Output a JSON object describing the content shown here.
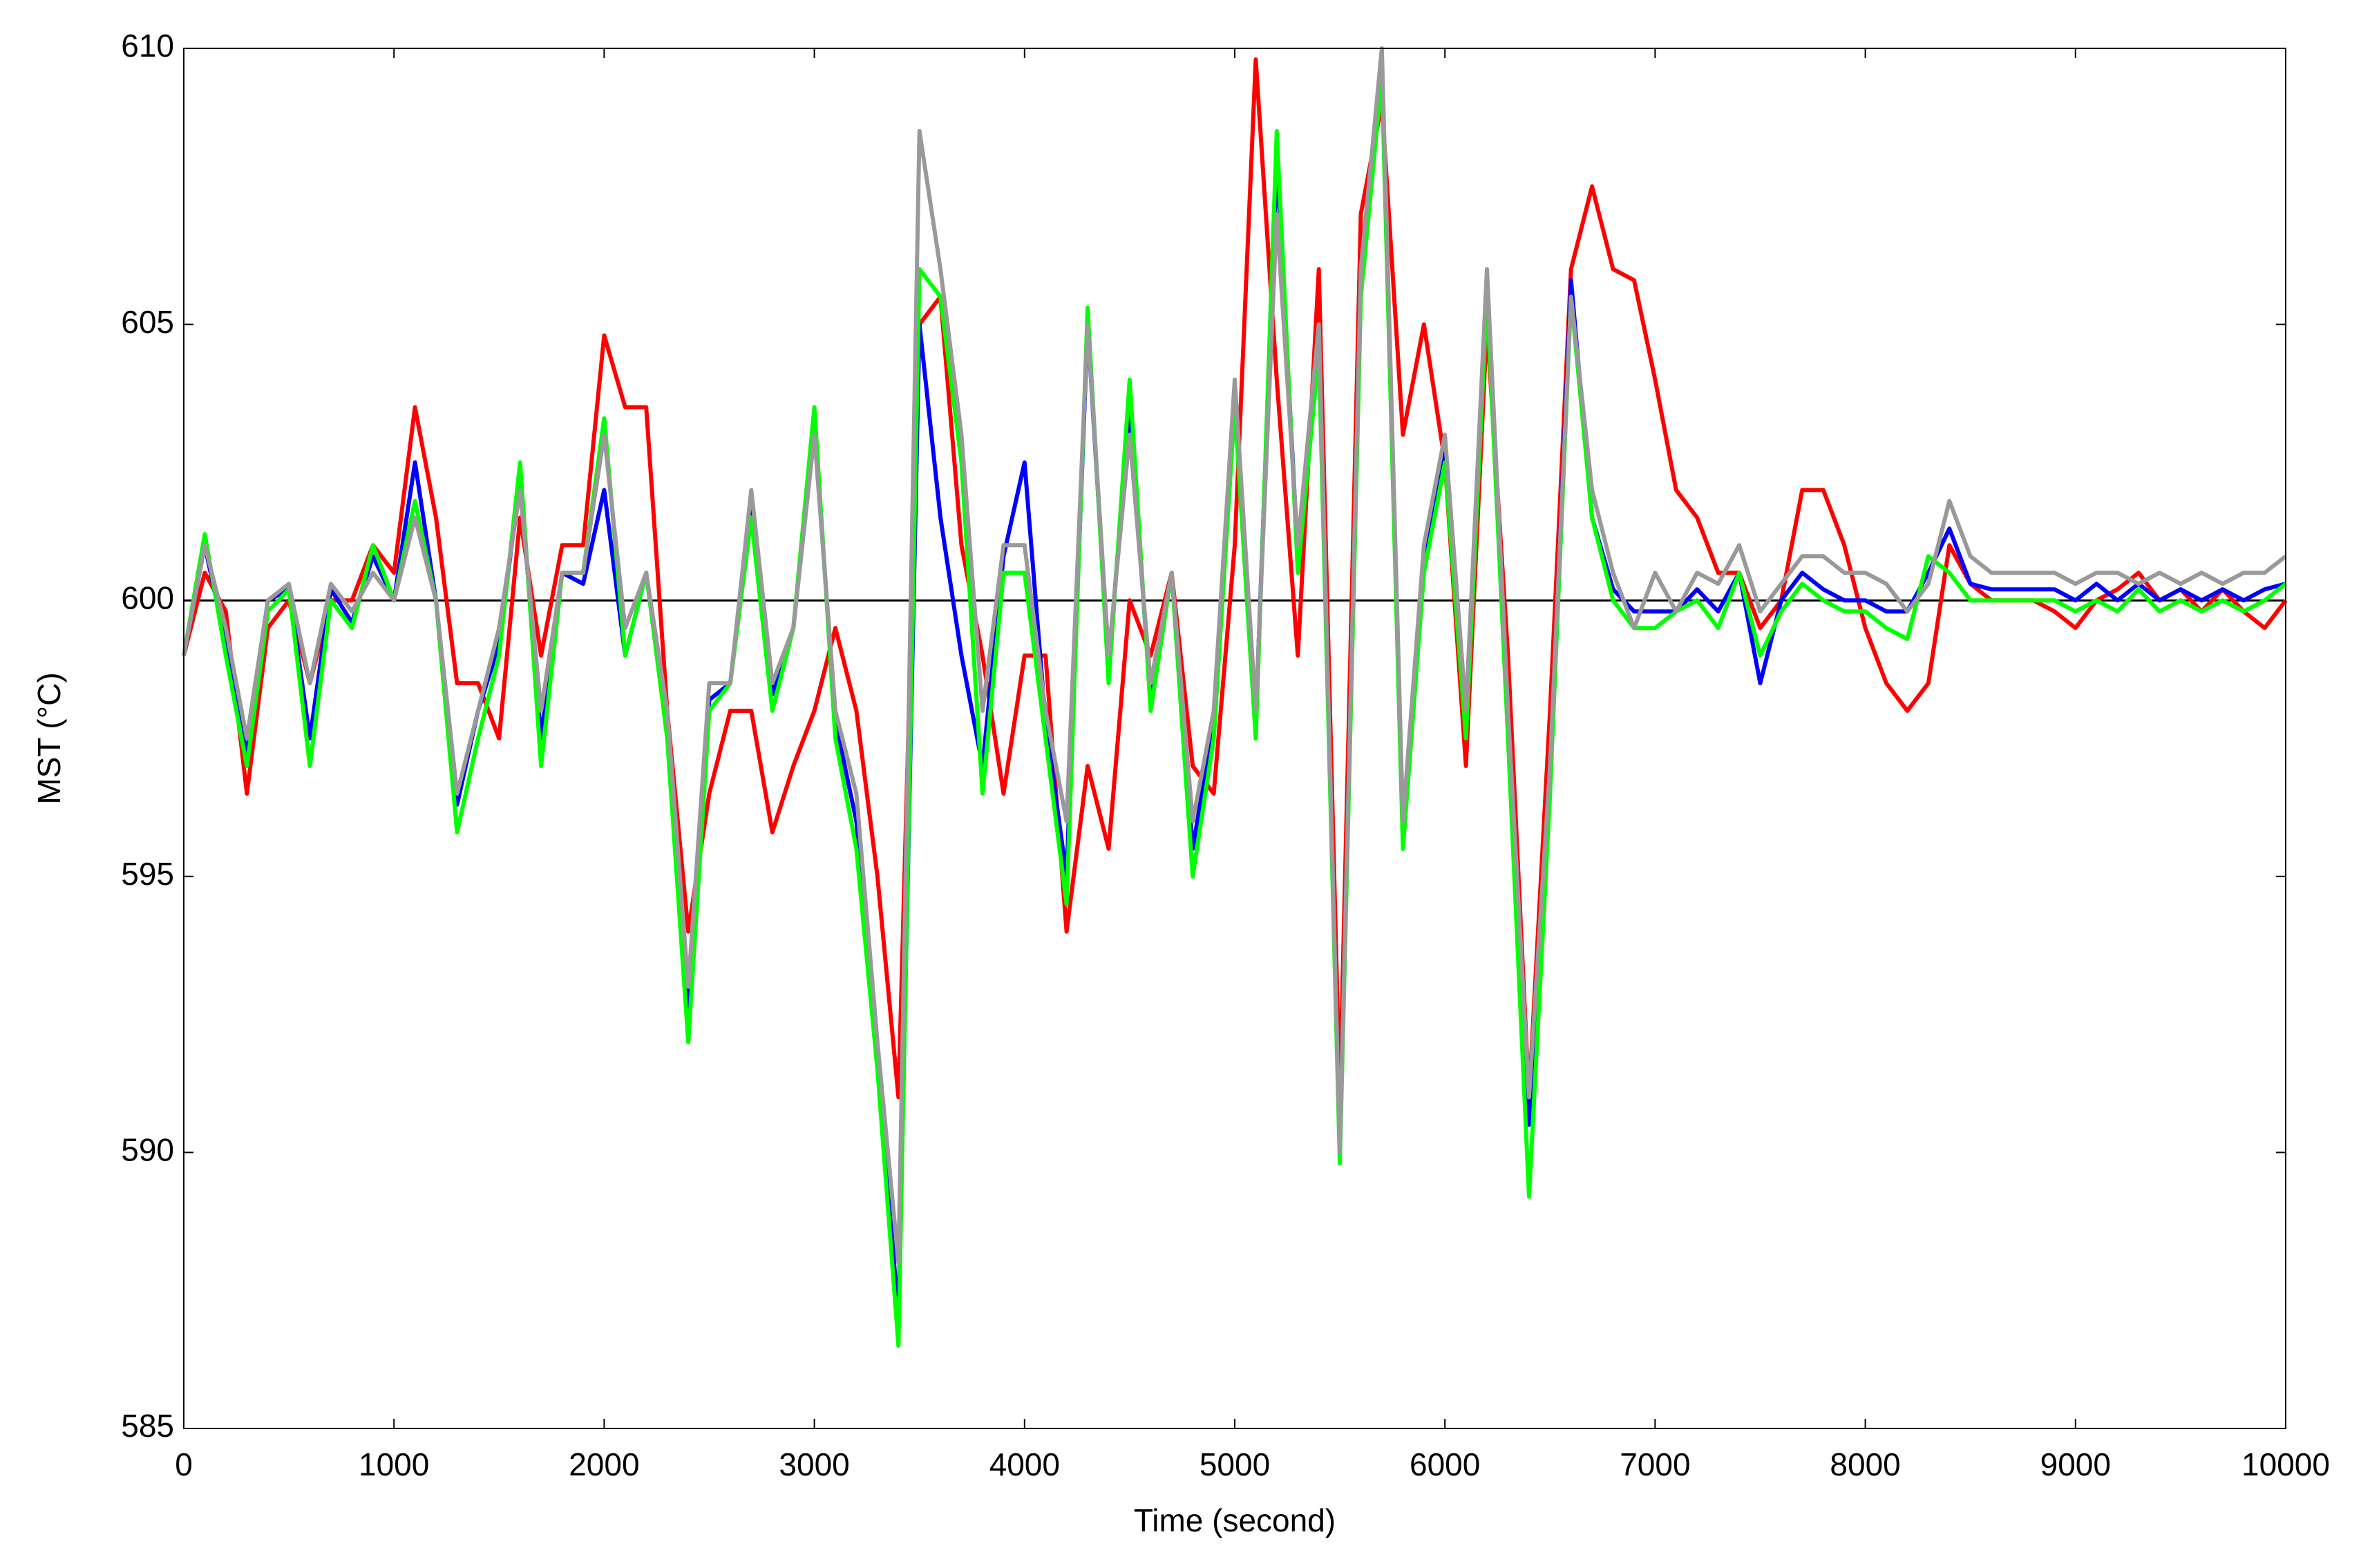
{
  "chart_data": {
    "type": "line",
    "xlabel": "Time (second)",
    "ylabel": "MST (°C)",
    "x": [
      0,
      100,
      200,
      300,
      400,
      500,
      600,
      700,
      800,
      900,
      1000,
      1100,
      1200,
      1300,
      1400,
      1500,
      1600,
      1700,
      1800,
      1900,
      2000,
      2100,
      2200,
      2300,
      2400,
      2500,
      2600,
      2700,
      2800,
      2900,
      3000,
      3100,
      3200,
      3300,
      3400,
      3500,
      3600,
      3700,
      3800,
      3900,
      4000,
      4100,
      4200,
      4300,
      4400,
      4500,
      4600,
      4700,
      4800,
      4900,
      5000,
      5100,
      5200,
      5300,
      5400,
      5500,
      5600,
      5700,
      5800,
      5900,
      6000,
      6100,
      6200,
      6300,
      6400,
      6500,
      6600,
      6700,
      6800,
      6900,
      7000,
      7100,
      7200,
      7300,
      7400,
      7500,
      7600,
      7700,
      7800,
      7900,
      8000,
      8100,
      8200,
      8300,
      8400,
      8500,
      8600,
      8700,
      8800,
      8900,
      9000,
      9100,
      9200,
      9300,
      9400,
      9500,
      9600,
      9700,
      9800,
      9900,
      10000
    ],
    "series": [
      {
        "color": "#ff0000",
        "values": [
          599,
          600.5,
          599.8,
          596.5,
          599.5,
          600,
          598.5,
          600,
          600,
          601,
          600.5,
          603.5,
          601.5,
          598.5,
          598.5,
          597.5,
          601.5,
          599,
          601,
          601,
          604.8,
          603.5,
          603.5,
          598,
          594,
          596.5,
          598,
          598,
          595.8,
          597,
          598,
          599.5,
          598,
          595,
          591,
          605,
          605.5,
          601,
          599,
          596.5,
          599,
          599,
          594,
          597,
          595.5,
          600,
          599,
          600.5,
          597,
          596.5,
          601,
          609.8,
          604,
          599,
          606,
          591,
          607,
          609,
          603,
          605,
          602.5,
          597,
          605,
          599,
          591,
          598,
          606,
          607.5,
          606,
          605.8,
          604,
          602,
          601.5,
          600.5,
          600.5,
          599.5,
          600,
          602,
          602,
          601,
          599.5,
          598.5,
          598,
          598.5,
          601,
          600.3,
          600,
          600,
          600,
          599.8,
          599.5,
          600,
          600.2,
          600.5,
          600,
          600.2,
          599.8,
          600.2,
          599.8,
          599.5,
          600
        ]
      },
      {
        "color": "#0000ff",
        "values": [
          599,
          601,
          599.2,
          597.2,
          600,
          600.2,
          597.5,
          600.2,
          599.6,
          600.8,
          600,
          602.5,
          600,
          596.3,
          598,
          599.2,
          602.2,
          597.5,
          600.5,
          600.3,
          602,
          599,
          600.5,
          597.8,
          592.5,
          598.2,
          598.5,
          601.8,
          598.3,
          599.5,
          603.2,
          597.8,
          596,
          591.8,
          587,
          605,
          601.5,
          599,
          597,
          600.8,
          602.5,
          597.8,
          595,
          605,
          598.8,
          603.5,
          598.2,
          600.5,
          595.5,
          597.8,
          603.8,
          597.8,
          608,
          600.8,
          604.8,
          590,
          605.8,
          609.8,
          595.8,
          600.8,
          602.8,
          597.8,
          605.8,
          597.8,
          590.5,
          596.8,
          605.8,
          601.5,
          600.2,
          599.8,
          599.8,
          599.8,
          600.2,
          599.8,
          600.5,
          598.5,
          600,
          600.5,
          600.2,
          600,
          600,
          599.8,
          599.8,
          600.5,
          601.3,
          600.3,
          600.2,
          600.2,
          600.2,
          600.2,
          600,
          600.3,
          600,
          600.3,
          600,
          600.2,
          600,
          600.2,
          600,
          600.2,
          600.3
        ]
      },
      {
        "color": "#00ff00",
        "values": [
          599,
          601.2,
          599,
          597,
          599.8,
          600.2,
          597,
          600,
          599.5,
          601,
          600,
          601.8,
          600,
          595.8,
          597.5,
          599,
          602.5,
          597,
          600.5,
          600.5,
          603.3,
          599,
          600.5,
          597.5,
          592,
          598,
          598.5,
          601.5,
          598,
          599.5,
          603.5,
          597.5,
          595.5,
          591.5,
          586.5,
          606,
          605.5,
          602.5,
          596.5,
          600.5,
          600.5,
          597.5,
          594.5,
          605.3,
          598.5,
          604,
          598,
          600.5,
          595,
          597.5,
          603.5,
          597.5,
          608.5,
          600.5,
          604.5,
          589.8,
          605.5,
          609.5,
          595.5,
          600.5,
          602.5,
          597.5,
          605.5,
          597.5,
          589.2,
          596.5,
          605.5,
          601.5,
          600,
          599.5,
          599.5,
          599.8,
          600,
          599.5,
          600.5,
          599,
          599.8,
          600.3,
          600,
          599.8,
          599.8,
          599.5,
          599.3,
          600.8,
          600.5,
          600,
          600,
          600,
          600,
          600,
          599.8,
          600,
          599.8,
          600.2,
          599.8,
          600,
          599.8,
          600,
          599.8,
          600,
          600.3
        ]
      },
      {
        "color": "#999999",
        "values": [
          599,
          601,
          599.5,
          597.5,
          600,
          600.3,
          598.5,
          600.3,
          599.8,
          600.5,
          600,
          601.5,
          600,
          596.5,
          598,
          599.5,
          602,
          598,
          600.5,
          600.5,
          603,
          599.5,
          600.5,
          598,
          593,
          598.5,
          598.5,
          602,
          598.5,
          599.5,
          603,
          598,
          596.5,
          592,
          588,
          608.5,
          606,
          603,
          598,
          601,
          601,
          598,
          596,
          605,
          599,
          603,
          598.5,
          600.5,
          596,
          598,
          604,
          598,
          607,
          601,
          605,
          590,
          606,
          610,
          596,
          601,
          603,
          598,
          606,
          598,
          591,
          597,
          605.5,
          602,
          600.5,
          599.5,
          600.5,
          599.8,
          600.5,
          600.3,
          601,
          599.8,
          600.3,
          600.8,
          600.8,
          600.5,
          600.5,
          600.3,
          599.8,
          600.3,
          601.8,
          600.8,
          600.5,
          600.5,
          600.5,
          600.5,
          600.3,
          600.5,
          600.5,
          600.3,
          600.5,
          600.3,
          600.5,
          600.3,
          600.5,
          600.5,
          600.8
        ]
      }
    ],
    "reference_y": 600,
    "xlim": [
      0,
      10000
    ],
    "xticks": [
      0,
      1000,
      2000,
      3000,
      4000,
      5000,
      6000,
      7000,
      8000,
      9000,
      10000
    ],
    "ylim": [
      585,
      610
    ],
    "yticks": [
      585,
      590,
      595,
      600,
      605,
      610
    ],
    "grid": false
  }
}
